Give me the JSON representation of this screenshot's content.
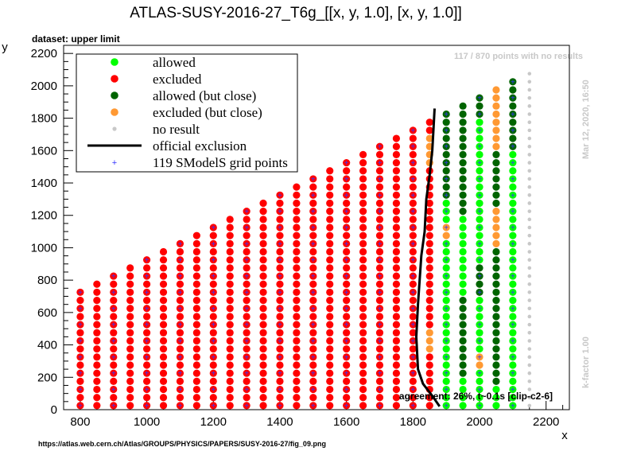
{
  "chart_data": {
    "type": "scatter",
    "title": "ATLAS-SUSY-2016-27_T6g_[[x, y, 1.0], [x, y, 1.0]]",
    "subtitle": "dataset: upper limit",
    "xlabel": "x",
    "ylabel": "y",
    "xlim": [
      750,
      2270
    ],
    "ylim": [
      0,
      2250
    ],
    "xticks": [
      800,
      1000,
      1200,
      1400,
      1600,
      1800,
      2000,
      2200
    ],
    "yticks": [
      0,
      200,
      400,
      600,
      800,
      1000,
      1200,
      1400,
      1600,
      1800,
      2000,
      2200
    ],
    "grid": false,
    "legend_position": "top-left",
    "legend": [
      {
        "key": "allowed",
        "label": "allowed",
        "color": "#00ff00"
      },
      {
        "key": "excluded",
        "label": "excluded",
        "color": "#ff0000"
      },
      {
        "key": "allowed_close",
        "label": "allowed (but close)",
        "color": "#006400"
      },
      {
        "key": "excluded_close",
        "label": "excluded (but close)",
        "color": "#ff9933"
      },
      {
        "key": "no_result",
        "label": "no result",
        "color": "#c8c8c8"
      },
      {
        "key": "official",
        "label": "official exclusion",
        "color": "#000000"
      },
      {
        "key": "grid",
        "label": "119 SModelS grid points",
        "color": "#3333ff"
      }
    ],
    "grid_points": {
      "x_start": 800,
      "x_step": 50,
      "x_count": 28,
      "y_start": 25,
      "y_step": 50,
      "y_max_offset": 25
    },
    "status_rules": {
      "x_1900": {
        "allowed_close_above": 1300,
        "excluded_close": [
          850,
          1100
        ],
        "excluded_close_low": [
          0,
          450
        ]
      },
      "x_1850": {
        "excluded_close": [
          350,
          1700
        ]
      },
      "x_2150_up": "no_result"
    },
    "official_exclusion": {
      "x": [
        1880,
        1860,
        1830,
        1815,
        1810,
        1815,
        1820,
        1825,
        1835,
        1840,
        1850,
        1858,
        1862,
        1865
      ],
      "y": [
        20,
        80,
        160,
        250,
        450,
        650,
        800,
        950,
        1100,
        1300,
        1450,
        1600,
        1750,
        1860
      ]
    },
    "annotations": {
      "no_results": "117 / 870 points with no results",
      "timestamp": "Mar 12, 2020, 16:50",
      "kfactor": "k-factor 1.00",
      "agreement": "agreement: 26%, t~0.1s [clip-c2-6]",
      "source_url": "https://atlas.web.cern.ch/Atlas/GROUPS/PHYSICS/PAPERS/SUSY-2016-27/fig_09.png"
    }
  }
}
